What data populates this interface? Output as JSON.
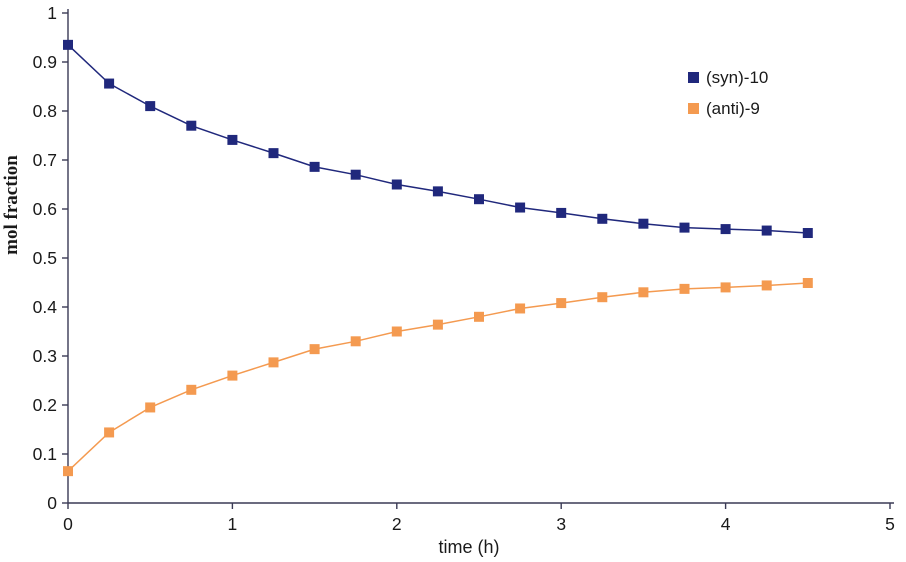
{
  "chart_data": {
    "type": "line",
    "title": "",
    "xlabel": "time  (h)",
    "ylabel": "mol fraction",
    "xlim": [
      0,
      5
    ],
    "ylim": [
      0,
      1
    ],
    "xticks": [
      0,
      1,
      2,
      3,
      4,
      5
    ],
    "yticks": [
      0,
      0.1,
      0.2,
      0.3,
      0.4,
      0.5,
      0.6,
      0.7,
      0.8,
      0.9,
      1
    ],
    "grid": false,
    "legend_position": "top-right",
    "x": [
      0,
      0.25,
      0.5,
      0.75,
      1,
      1.25,
      1.5,
      1.75,
      2,
      2.25,
      2.5,
      2.75,
      3,
      3.25,
      3.5,
      3.75,
      4,
      4.25,
      4.5
    ],
    "series": [
      {
        "name": "(syn)-10",
        "color": "#20287C",
        "marker": "square",
        "values": [
          0.935,
          0.856,
          0.81,
          0.77,
          0.741,
          0.714,
          0.686,
          0.67,
          0.65,
          0.636,
          0.62,
          0.603,
          0.592,
          0.58,
          0.57,
          0.562,
          0.559,
          0.556,
          0.551
        ]
      },
      {
        "name": "(anti)-9",
        "color": "#F49A50",
        "marker": "square",
        "values": [
          0.065,
          0.144,
          0.195,
          0.231,
          0.26,
          0.287,
          0.314,
          0.33,
          0.35,
          0.364,
          0.38,
          0.397,
          0.408,
          0.42,
          0.43,
          0.437,
          0.44,
          0.444,
          0.449
        ]
      }
    ],
    "style": {
      "axis_color": "#3A3A55",
      "text_color": "#1A1A1A",
      "background": "#FFFFFF"
    }
  }
}
